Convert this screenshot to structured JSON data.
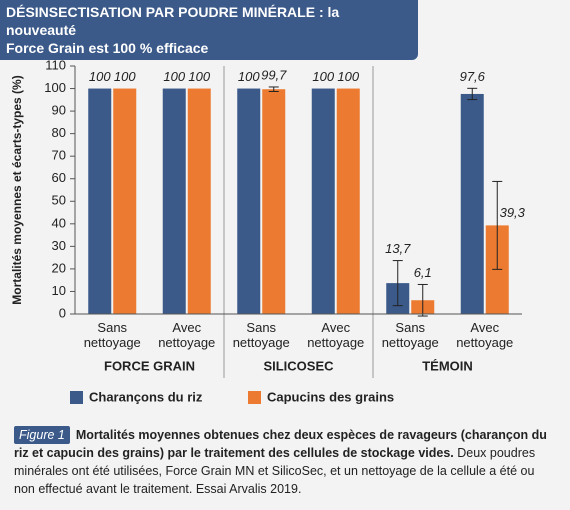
{
  "chart_data": {
    "type": "bar",
    "title": [
      "DÉSINSECTISATION PAR POUDRE MINÉRALE : la nouveauté",
      "Force Grain est 100 % efficace"
    ],
    "y_label": "Mortalités moyennes et écarts-types (%)",
    "categories": [
      "Sans nettoyage",
      "Avec nettoyage",
      "Sans nettoyage",
      "Avec nettoyage",
      "Sans nettoyage",
      "Avec nettoyage"
    ],
    "groups": [
      "FORCE GRAIN",
      "SILICOSEC",
      "TÉMOIN"
    ],
    "series": [
      {
        "name": "Charançons du riz",
        "color": "#3b5a8a",
        "values": [
          100,
          100,
          100,
          100,
          13.7,
          97.6
        ],
        "value_labels": [
          "100",
          "100",
          "100",
          "100",
          "13,7",
          "97,6"
        ],
        "errors": [
          0,
          0,
          0,
          0,
          10,
          2.5
        ]
      },
      {
        "name": "Capucins des grains",
        "color": "#ec7a30",
        "values": [
          100,
          100,
          99.7,
          100,
          6.1,
          39.3
        ],
        "value_labels": [
          "100",
          "100",
          "99,7",
          "100",
          "6,1",
          "39,3"
        ],
        "errors": [
          0,
          0,
          1,
          0,
          7,
          19.5
        ]
      }
    ],
    "ylim": [
      0,
      110
    ],
    "yticks": [
      0,
      10,
      20,
      30,
      40,
      50,
      60,
      70,
      80,
      90,
      100,
      110
    ]
  },
  "caption": {
    "label": "Figure 1",
    "bold": "Mortalités moyennes obtenues chez deux espèces de ravageurs (charançon du riz et capucin des grains) par le traitement des cellules de stockage vides.",
    "text": "Deux poudres minérales ont été utilisées, Force Grain MN et SilicoSec, et un nettoyage de la cellule a été ou non effectué avant le traitement. Essai Arvalis 2019."
  }
}
